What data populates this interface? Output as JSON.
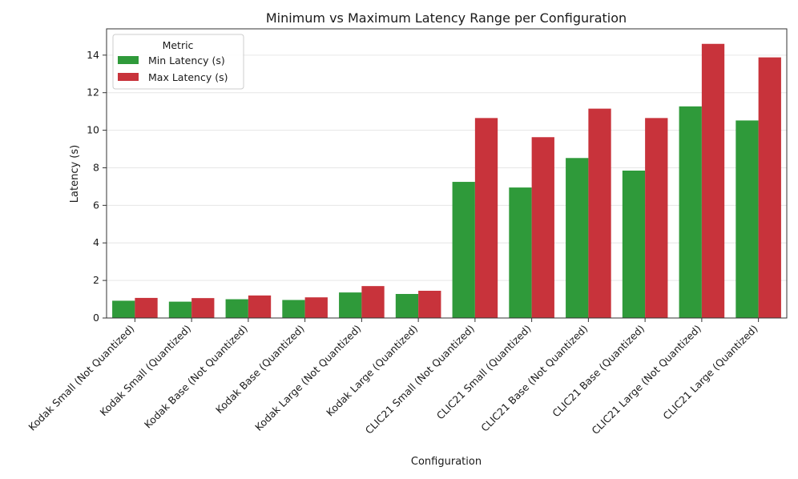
{
  "chart_data": {
    "type": "bar",
    "title": "Minimum vs Maximum Latency Range per Configuration",
    "xlabel": "Configuration",
    "ylabel": "Latency (s)",
    "ylim": [
      0,
      15.4
    ],
    "yticks": [
      0,
      2,
      4,
      6,
      8,
      10,
      12,
      14
    ],
    "grid": true,
    "legend": {
      "title": "Metric",
      "placement": "top-left"
    },
    "categories": [
      "Kodak Small (Not Quantized)",
      "Kodak Small (Quantized)",
      "Kodak Base (Not Quantized)",
      "Kodak Base (Quantized)",
      "Kodak Large (Not Quantized)",
      "Kodak Large (Quantized)",
      "CLIC21 Small (Not Quantized)",
      "CLIC21 Small (Quantized)",
      "CLIC21 Base (Not Quantized)",
      "CLIC21 Base (Quantized)",
      "CLIC21 Large (Not Quantized)",
      "CLIC21 Large (Quantized)"
    ],
    "series": [
      {
        "name": "Min Latency (s)",
        "color": "#2f9a3a",
        "values": [
          0.92,
          0.87,
          1.0,
          0.96,
          1.36,
          1.28,
          7.25,
          6.95,
          8.52,
          7.85,
          11.27,
          10.52
        ]
      },
      {
        "name": "Max Latency (s)",
        "color": "#c8333b",
        "values": [
          1.07,
          1.06,
          1.2,
          1.1,
          1.7,
          1.45,
          10.65,
          9.63,
          11.15,
          10.65,
          14.6,
          13.88
        ]
      }
    ]
  }
}
